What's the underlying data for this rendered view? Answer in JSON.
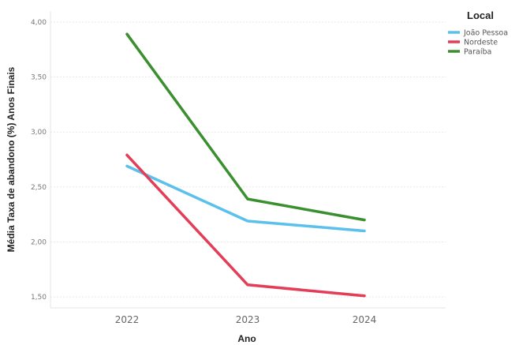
{
  "chart_data": {
    "type": "line",
    "title": "",
    "xlabel": "Ano",
    "ylabel": "Média Taxa de abandono (%) Anos Finais",
    "x": [
      "2022",
      "2023",
      "2024"
    ],
    "ylim": [
      1.4,
      4.1
    ],
    "yticks": [
      1.5,
      2.0,
      2.5,
      3.0,
      3.5,
      4.0
    ],
    "ytick_labels": [
      "1,50",
      "2,00",
      "2,50",
      "3,00",
      "3,50",
      "4,00"
    ],
    "grid": true,
    "legend": {
      "title": "Local",
      "placement": "top-right"
    },
    "series": [
      {
        "name": "João Pessoa",
        "color": "#5bc0eb",
        "values": [
          2.69,
          2.19,
          2.1
        ]
      },
      {
        "name": "Nordeste",
        "color": "#e33d57",
        "values": [
          2.79,
          1.61,
          1.51
        ]
      },
      {
        "name": "Paraíba",
        "color": "#3a8f2f",
        "values": [
          3.89,
          2.39,
          2.2
        ]
      }
    ]
  }
}
